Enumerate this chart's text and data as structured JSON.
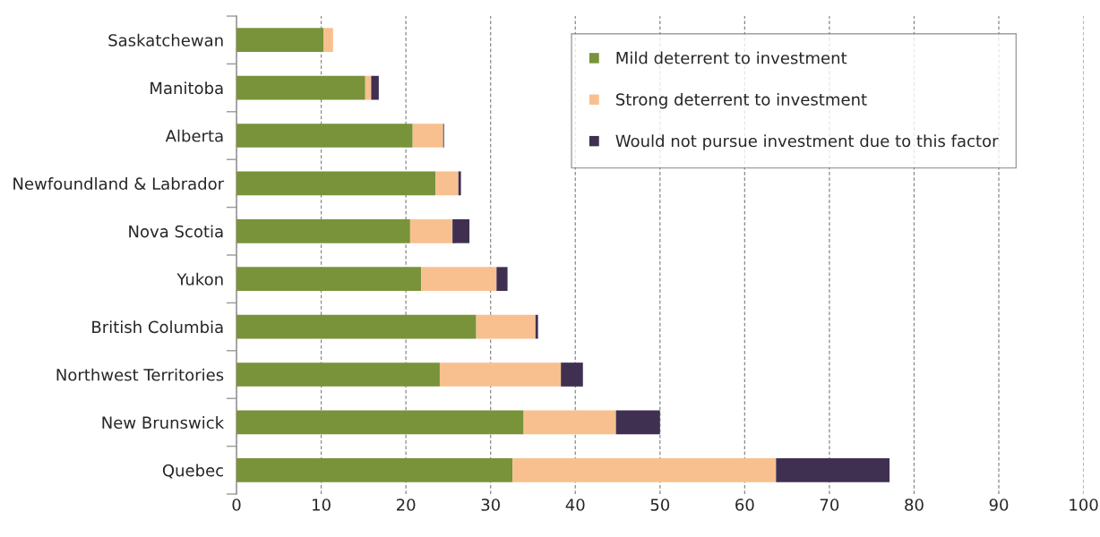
{
  "chart_data": {
    "type": "bar",
    "orientation": "horizontal",
    "stacked": true,
    "categories": [
      "Saskatchewan",
      "Manitoba",
      "Alberta",
      "Newfoundland & Labrador",
      "Nova Scotia",
      "Yukon",
      "British Columbia",
      "Northwest Territories",
      "New Brunswick",
      "Quebec"
    ],
    "series": [
      {
        "name": "Mild deterrent to investment",
        "color": "#78933a",
        "values": [
          10.3,
          15.2,
          20.8,
          23.5,
          20.5,
          21.8,
          28.3,
          24.0,
          33.9,
          32.6
        ]
      },
      {
        "name": "Strong deterrent to investment",
        "color": "#f8c08f",
        "values": [
          1.1,
          0.7,
          3.6,
          2.7,
          5.0,
          8.9,
          7.0,
          14.3,
          10.9,
          31.1
        ]
      },
      {
        "name": "Would not pursue investment due to this factor",
        "color": "#3f3052",
        "values": [
          0,
          0.9,
          0.1,
          0.3,
          2.0,
          1.3,
          0.3,
          2.6,
          5.2,
          13.4
        ]
      }
    ],
    "xlim": [
      0,
      100
    ],
    "xticks": [
      0,
      10,
      20,
      30,
      40,
      50,
      60,
      70,
      80,
      90,
      100
    ],
    "grid": "x",
    "legend": "top right"
  }
}
